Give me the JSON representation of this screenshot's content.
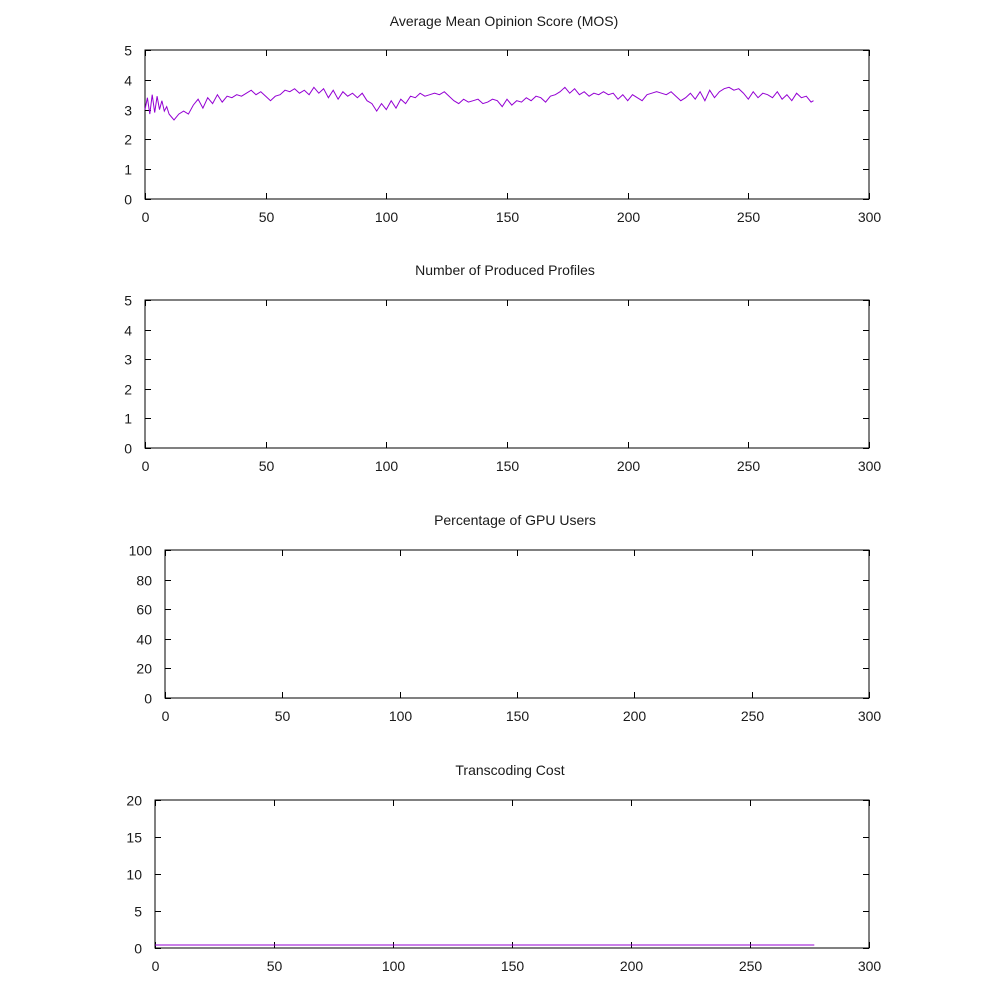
{
  "chart_data": [
    {
      "type": "line",
      "title": "Average Mean Opinion Score (MOS)",
      "xlabel": "",
      "ylabel": "",
      "xlim": [
        0,
        300
      ],
      "ylim": [
        0,
        5
      ],
      "xticks": [
        "0",
        "50",
        "100",
        "150",
        "200",
        "250",
        "300"
      ],
      "yticks": [
        "0",
        "1",
        "2",
        "3",
        "4",
        "5"
      ],
      "grid": false,
      "series": [
        {
          "color": "#9400d3",
          "x": [
            0,
            1,
            2,
            3,
            4,
            5,
            6,
            7,
            8,
            9,
            10,
            11,
            12,
            14,
            16,
            18,
            20,
            22,
            24,
            26,
            28,
            30,
            32,
            34,
            36,
            38,
            40,
            42,
            44,
            46,
            48,
            50,
            52,
            54,
            56,
            58,
            60,
            62,
            64,
            66,
            68,
            70,
            72,
            74,
            76,
            78,
            80,
            82,
            84,
            86,
            88,
            90,
            92,
            94,
            96,
            98,
            100,
            102,
            104,
            106,
            108,
            110,
            112,
            114,
            116,
            118,
            120,
            122,
            124,
            126,
            128,
            130,
            132,
            134,
            136,
            138,
            140,
            142,
            144,
            146,
            148,
            150,
            152,
            154,
            156,
            158,
            160,
            162,
            164,
            166,
            168,
            170,
            172,
            174,
            176,
            178,
            180,
            182,
            184,
            186,
            188,
            190,
            192,
            194,
            196,
            198,
            200,
            202,
            204,
            206,
            208,
            210,
            212,
            214,
            216,
            218,
            220,
            222,
            224,
            226,
            228,
            230,
            232,
            234,
            236,
            238,
            240,
            242,
            244,
            246,
            248,
            250,
            252,
            254,
            256,
            258,
            260,
            262,
            264,
            266,
            268,
            270,
            272,
            274,
            276,
            277
          ],
          "y": [
            3.0,
            3.4,
            2.85,
            3.5,
            2.9,
            3.45,
            3.0,
            3.3,
            2.95,
            3.1,
            2.85,
            2.75,
            2.65,
            2.85,
            2.95,
            2.85,
            3.15,
            3.35,
            3.05,
            3.4,
            3.2,
            3.5,
            3.25,
            3.45,
            3.4,
            3.5,
            3.45,
            3.55,
            3.65,
            3.5,
            3.6,
            3.45,
            3.3,
            3.45,
            3.5,
            3.65,
            3.6,
            3.7,
            3.55,
            3.65,
            3.5,
            3.75,
            3.55,
            3.7,
            3.4,
            3.65,
            3.35,
            3.6,
            3.45,
            3.55,
            3.4,
            3.55,
            3.3,
            3.2,
            2.95,
            3.2,
            3.0,
            3.3,
            3.05,
            3.35,
            3.2,
            3.45,
            3.4,
            3.55,
            3.45,
            3.5,
            3.55,
            3.5,
            3.6,
            3.45,
            3.3,
            3.2,
            3.35,
            3.25,
            3.3,
            3.35,
            3.2,
            3.25,
            3.35,
            3.3,
            3.1,
            3.35,
            3.15,
            3.3,
            3.25,
            3.4,
            3.3,
            3.45,
            3.4,
            3.25,
            3.45,
            3.5,
            3.6,
            3.75,
            3.55,
            3.7,
            3.5,
            3.6,
            3.45,
            3.55,
            3.5,
            3.6,
            3.5,
            3.55,
            3.35,
            3.5,
            3.3,
            3.5,
            3.4,
            3.3,
            3.5,
            3.55,
            3.6,
            3.55,
            3.5,
            3.6,
            3.45,
            3.3,
            3.4,
            3.55,
            3.35,
            3.6,
            3.3,
            3.65,
            3.4,
            3.6,
            3.7,
            3.75,
            3.65,
            3.7,
            3.55,
            3.35,
            3.6,
            3.4,
            3.55,
            3.5,
            3.4,
            3.6,
            3.35,
            3.5,
            3.3,
            3.55,
            3.4,
            3.45,
            3.25,
            3.3
          ]
        }
      ]
    },
    {
      "type": "line",
      "title": "Number of Produced Profiles",
      "xlabel": "",
      "ylabel": "",
      "xlim": [
        0,
        300
      ],
      "ylim": [
        0,
        5
      ],
      "xticks": [
        "0",
        "50",
        "100",
        "150",
        "200",
        "250",
        "300"
      ],
      "yticks": [
        "0",
        "1",
        "2",
        "3",
        "4",
        "5"
      ],
      "grid": false,
      "series": []
    },
    {
      "type": "line",
      "title": "Percentage of GPU Users",
      "xlabel": "",
      "ylabel": "",
      "xlim": [
        0,
        300
      ],
      "ylim": [
        0,
        100
      ],
      "xticks": [
        "0",
        "50",
        "100",
        "150",
        "200",
        "250",
        "300"
      ],
      "yticks": [
        "0",
        "20",
        "40",
        "60",
        "80",
        "100"
      ],
      "grid": false,
      "series": []
    },
    {
      "type": "line",
      "title": "Transcoding Cost",
      "xlabel": "",
      "ylabel": "",
      "xlim": [
        0,
        300
      ],
      "ylim": [
        0,
        20
      ],
      "xticks": [
        "0",
        "50",
        "100",
        "150",
        "200",
        "250",
        "300"
      ],
      "yticks": [
        "0",
        "5",
        "10",
        "15",
        "20"
      ],
      "grid": false,
      "series": [
        {
          "color": "#9400d3",
          "x": [
            0,
            277
          ],
          "y": [
            0.4,
            0.4
          ]
        }
      ]
    }
  ]
}
